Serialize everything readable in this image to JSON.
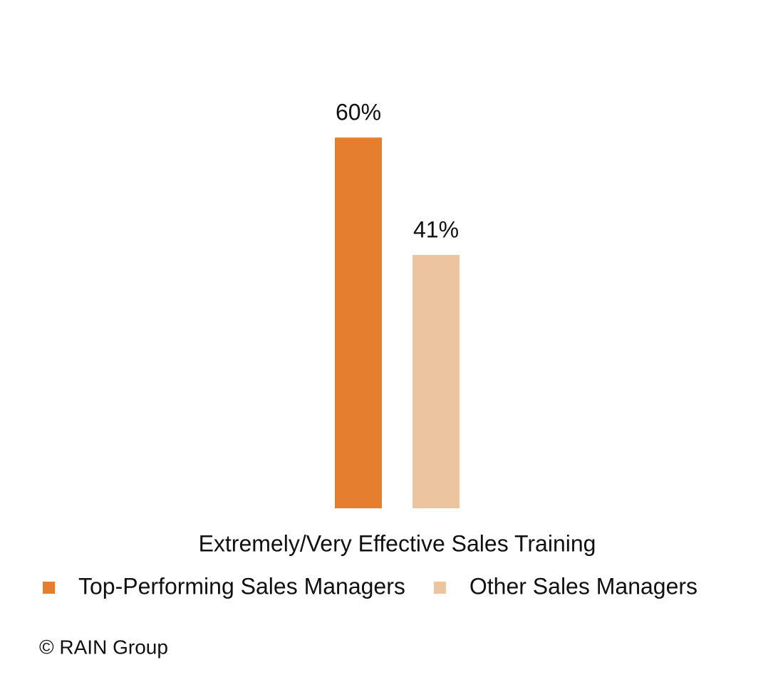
{
  "chart_data": {
    "type": "bar",
    "categories": [
      "Extremely/Very Effective Sales Training"
    ],
    "series": [
      {
        "name": "Top-Performing Sales Managers",
        "color": "#e67e30",
        "values": [
          60
        ],
        "value_labels": [
          "60%"
        ]
      },
      {
        "name": "Other Sales Managers",
        "color": "#ecc4a0",
        "values": [
          41
        ],
        "value_labels": [
          "41%"
        ]
      }
    ],
    "source": "© RAIN Group"
  }
}
